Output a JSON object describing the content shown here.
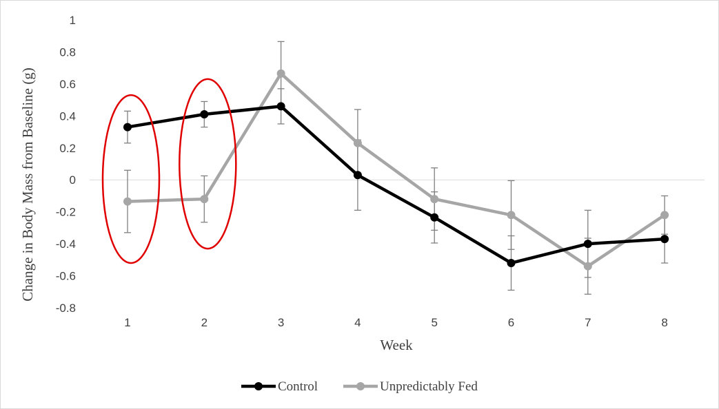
{
  "chart_data": {
    "type": "line",
    "x": [
      1,
      2,
      3,
      4,
      5,
      6,
      7,
      8
    ],
    "xlabel": "Week",
    "ylabel": "Change in Body Mass from Baseline (g)",
    "ylim": [
      -0.8,
      1
    ],
    "yticks": [
      1,
      0.8,
      0.6,
      0.4,
      0.2,
      0,
      -0.2,
      -0.4,
      -0.6,
      -0.8
    ],
    "ytick_labels": [
      "1",
      "0.8",
      "0.6",
      "0.4",
      "0.2",
      "0",
      "-0.2",
      "-0.4",
      "-0.6",
      "-0.8"
    ],
    "xtick_labels": [
      "1",
      "2",
      "3",
      "4",
      "5",
      "6",
      "7",
      "8"
    ],
    "grid": "zero line only",
    "legend_position": "bottom-center",
    "series": [
      {
        "name": "Control",
        "color": "#000000",
        "values": [
          0.33,
          0.41,
          0.46,
          0.03,
          -0.235,
          -0.52,
          -0.4,
          -0.37
        ],
        "error": [
          0.1,
          0.08,
          0.11,
          0.22,
          0.16,
          0.17,
          0.21,
          0.15
        ]
      },
      {
        "name": "Unpredictably Fed",
        "color": "#a6a6a6",
        "values": [
          -0.135,
          -0.12,
          0.665,
          0.23,
          -0.12,
          -0.22,
          -0.54,
          -0.22
        ],
        "error": [
          0.195,
          0.145,
          0.2,
          0.21,
          0.195,
          0.215,
          0.175,
          0.12
        ]
      }
    ],
    "annotations": [
      {
        "type": "ellipse",
        "color": "#e00000",
        "x": 1,
        "y_range": [
          -0.52,
          0.53
        ]
      },
      {
        "type": "ellipse",
        "color": "#e00000",
        "x": 2,
        "y_range": [
          -0.43,
          0.63
        ]
      }
    ]
  }
}
